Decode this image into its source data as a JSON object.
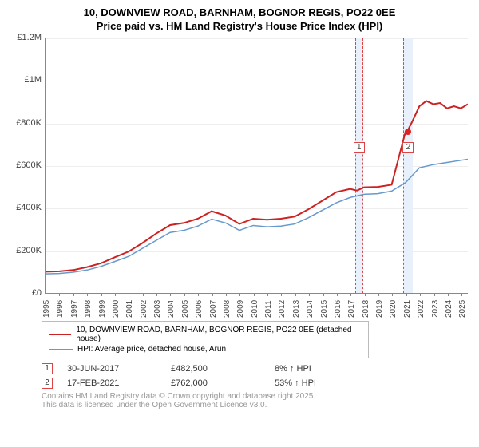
{
  "title": "10, DOWNVIEW ROAD, BARNHAM, BOGNOR REGIS, PO22 0EE",
  "subtitle": "Price paid vs. HM Land Registry's House Price Index (HPI)",
  "chart": {
    "type": "line",
    "ylim": [
      0,
      1200000
    ],
    "yticks": [
      0,
      200000,
      400000,
      600000,
      800000,
      1000000,
      1200000
    ],
    "ytick_labels": [
      "£0",
      "£200K",
      "£400K",
      "£600K",
      "£800K",
      "£1M",
      "£1.2M"
    ],
    "xlim": [
      1995,
      2025.5
    ],
    "xticks": [
      1995,
      1996,
      1997,
      1998,
      1999,
      2000,
      2001,
      2002,
      2003,
      2004,
      2005,
      2006,
      2007,
      2008,
      2009,
      2010,
      2011,
      2012,
      2013,
      2014,
      2015,
      2016,
      2017,
      2018,
      2019,
      2020,
      2021,
      2022,
      2023,
      2024,
      2025
    ],
    "series": [
      {
        "name": "property",
        "color": "#cc2222",
        "width": 2,
        "data": [
          [
            1995,
            100000
          ],
          [
            1996,
            102000
          ],
          [
            1997,
            108000
          ],
          [
            1998,
            122000
          ],
          [
            1999,
            140000
          ],
          [
            2000,
            168000
          ],
          [
            2001,
            195000
          ],
          [
            2002,
            235000
          ],
          [
            2003,
            280000
          ],
          [
            2004,
            320000
          ],
          [
            2005,
            330000
          ],
          [
            2006,
            350000
          ],
          [
            2007,
            385000
          ],
          [
            2008,
            365000
          ],
          [
            2009,
            325000
          ],
          [
            2010,
            350000
          ],
          [
            2011,
            345000
          ],
          [
            2012,
            350000
          ],
          [
            2013,
            360000
          ],
          [
            2014,
            395000
          ],
          [
            2015,
            435000
          ],
          [
            2016,
            475000
          ],
          [
            2017,
            490000
          ],
          [
            2017.5,
            482500
          ],
          [
            2018,
            498000
          ],
          [
            2019,
            500000
          ],
          [
            2020,
            510000
          ],
          [
            2021,
            760000
          ],
          [
            2021.13,
            762000
          ],
          [
            2021.5,
            810000
          ],
          [
            2022,
            880000
          ],
          [
            2022.5,
            905000
          ],
          [
            2023,
            890000
          ],
          [
            2023.5,
            895000
          ],
          [
            2024,
            870000
          ],
          [
            2024.5,
            880000
          ],
          [
            2025,
            870000
          ],
          [
            2025.5,
            890000
          ]
        ]
      },
      {
        "name": "hpi",
        "color": "#6699cc",
        "width": 1.5,
        "data": [
          [
            1995,
            90000
          ],
          [
            1996,
            92000
          ],
          [
            1997,
            98000
          ],
          [
            1998,
            108000
          ],
          [
            1999,
            125000
          ],
          [
            2000,
            148000
          ],
          [
            2001,
            172000
          ],
          [
            2002,
            210000
          ],
          [
            2003,
            248000
          ],
          [
            2004,
            285000
          ],
          [
            2005,
            295000
          ],
          [
            2006,
            315000
          ],
          [
            2007,
            348000
          ],
          [
            2008,
            330000
          ],
          [
            2009,
            295000
          ],
          [
            2010,
            318000
          ],
          [
            2011,
            312000
          ],
          [
            2012,
            315000
          ],
          [
            2013,
            325000
          ],
          [
            2014,
            355000
          ],
          [
            2015,
            390000
          ],
          [
            2016,
            425000
          ],
          [
            2017,
            450000
          ],
          [
            2018,
            465000
          ],
          [
            2019,
            468000
          ],
          [
            2020,
            480000
          ],
          [
            2021,
            520000
          ],
          [
            2022,
            590000
          ],
          [
            2023,
            605000
          ],
          [
            2024,
            615000
          ],
          [
            2025,
            625000
          ],
          [
            2025.5,
            630000
          ]
        ]
      }
    ],
    "highlight_bands": [
      {
        "id": "1",
        "x_start": 2017.3,
        "x_end": 2017.9,
        "marker_y": 180
      },
      {
        "id": "2",
        "x_start": 2020.8,
        "x_end": 2021.5,
        "marker_y": 180,
        "dot_y": 762000
      }
    ],
    "background": "#ffffff",
    "grid_color": "#eeeeee",
    "axis_color": "#888888",
    "label_fontsize": 11
  },
  "legend": {
    "items": [
      {
        "color": "#cc2222",
        "width": 2,
        "label": "10, DOWNVIEW ROAD, BARNHAM, BOGNOR REGIS, PO22 0EE (detached house)"
      },
      {
        "color": "#6699cc",
        "width": 1.5,
        "label": "HPI: Average price, detached house, Arun"
      }
    ]
  },
  "transactions": [
    {
      "id": "1",
      "date": "30-JUN-2017",
      "price": "£482,500",
      "pct": "8% ↑ HPI"
    },
    {
      "id": "2",
      "date": "17-FEB-2021",
      "price": "£762,000",
      "pct": "53% ↑ HPI"
    }
  ],
  "copyright": {
    "line1": "Contains HM Land Registry data © Crown copyright and database right 2025.",
    "line2": "This data is licensed under the Open Government Licence v3.0."
  }
}
